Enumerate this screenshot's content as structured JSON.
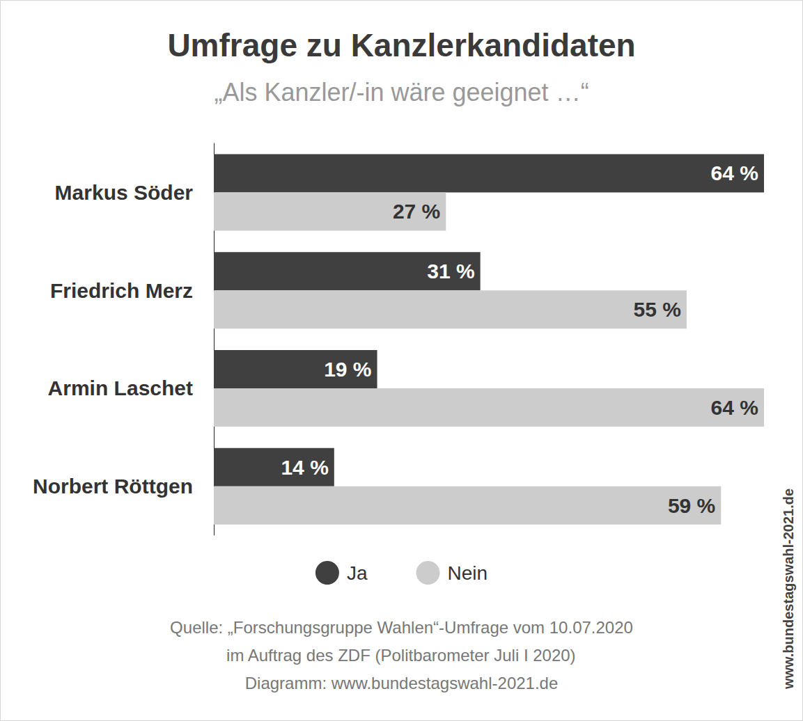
{
  "chart_data": {
    "type": "bar",
    "title": "Umfrage zu Kanzlerkandidaten",
    "subtitle": "„Als Kanzler/-in wäre geeignet …“",
    "categories": [
      "Markus Söder",
      "Friedrich Merz",
      "Armin Laschet",
      "Norbert Röttgen"
    ],
    "series": [
      {
        "name": "Ja",
        "color": "#404040",
        "values": [
          64,
          31,
          19,
          14
        ],
        "value_labels": [
          "64 %",
          "31 %",
          "19 %",
          "14 %"
        ]
      },
      {
        "name": "Nein",
        "color": "#cccccc",
        "values": [
          27,
          55,
          64,
          59
        ],
        "value_labels": [
          "27 %",
          "55 %",
          "64 %",
          "59 %"
        ]
      }
    ],
    "xlim": [
      0,
      64
    ],
    "orientation": "horizontal",
    "data_labels": true,
    "tick_labels": "y",
    "grid": false,
    "legend": "bottom",
    "source": [
      "Quelle: „Forschungsgruppe Wahlen“-Umfrage vom 10.07.2020",
      "im Auftrag des ZDF (Politbarometer Juli I 2020)",
      "Diagramm: www.bundestagswahl-2021.de"
    ],
    "watermark": "www.bundestagswahl-2021.de"
  }
}
